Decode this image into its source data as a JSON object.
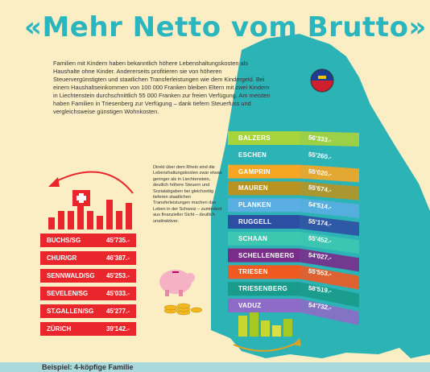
{
  "title": "«Mehr Netto vom Brutto»",
  "intro": "Familien mit Kindern haben bekanntlich höhere Lebenshaltungskosten als Haushalte ohne Kinder. Andererseits profitieren sie von höheren Steuervergünstigten und staatlichen Transferleistungen wie dem Kindergeld. Bei einem Haushaltseinkommen von 100 000 Franken bleiben Eltern mit zwei Kindern in Liechtenstein durchschnittlich 55 000 Franken zur freien Verfügung. Am meisten haben Familien in Triesenberg zur Verfügung – dank tiefem Steuerfuss und vergleichsweise günstigen Wohnkosten.",
  "sidenote": "Direkt über dem Rhein sind die Lebenshaltungskosten zwar etwas geringer als in Liechtenstein, deutlich höhere Steuern und Sozialabgaben bei gleichzeitig tieferen staatlichen Transferleistungen machen das Leben in der Schweiz – zumindest aus finanzieller Sicht – deutlich unattraktiver.",
  "colors": {
    "title": "#2bb6bf",
    "swiss_red": "#e8262c",
    "map": "#2cb3b6",
    "background": "#fbeec5"
  },
  "swiss": [
    {
      "name": "BUCHS/SG",
      "value": "45'735.-"
    },
    {
      "name": "CHUR/GR",
      "value": "46'387.-"
    },
    {
      "name": "SENNWALD/SG",
      "value": "45'253.-"
    },
    {
      "name": "SEVELEN/SG",
      "value": "45'033.-"
    },
    {
      "name": "ST.GALLEN/SG",
      "value": "45'277.-"
    },
    {
      "name": "ZÜRICH",
      "value": "39'142.-"
    }
  ],
  "liechtenstein": [
    {
      "name": "BALZERS",
      "value": "56'333.-",
      "color": "#a7d33b"
    },
    {
      "name": "ESCHEN",
      "value": "55'260.-",
      "color": "#2cb3b6"
    },
    {
      "name": "GAMPRIN",
      "value": "55'020.-",
      "color": "#f6a623"
    },
    {
      "name": "MAUREN",
      "value": "55'674.-",
      "color": "#b89322"
    },
    {
      "name": "PLANKEN",
      "value": "54'514.-",
      "color": "#5aaee2"
    },
    {
      "name": "RUGGELL",
      "value": "55'174.-",
      "color": "#2d4fa3"
    },
    {
      "name": "SCHAAN",
      "value": "55'452.-",
      "color": "#3cc8b0"
    },
    {
      "name": "SCHELLENBERG",
      "value": "54'027.-",
      "color": "#7a2c8a"
    },
    {
      "name": "TRIESEN",
      "value": "55'553.-",
      "color": "#f05a22"
    },
    {
      "name": "TRIESENBERG",
      "value": "58'519.-",
      "color": "#1a9a8a"
    },
    {
      "name": "VADUZ",
      "value": "54'732.-",
      "color": "#8e6bc7"
    }
  ],
  "footer": "Beispiel: 4-köpfige Familie"
}
